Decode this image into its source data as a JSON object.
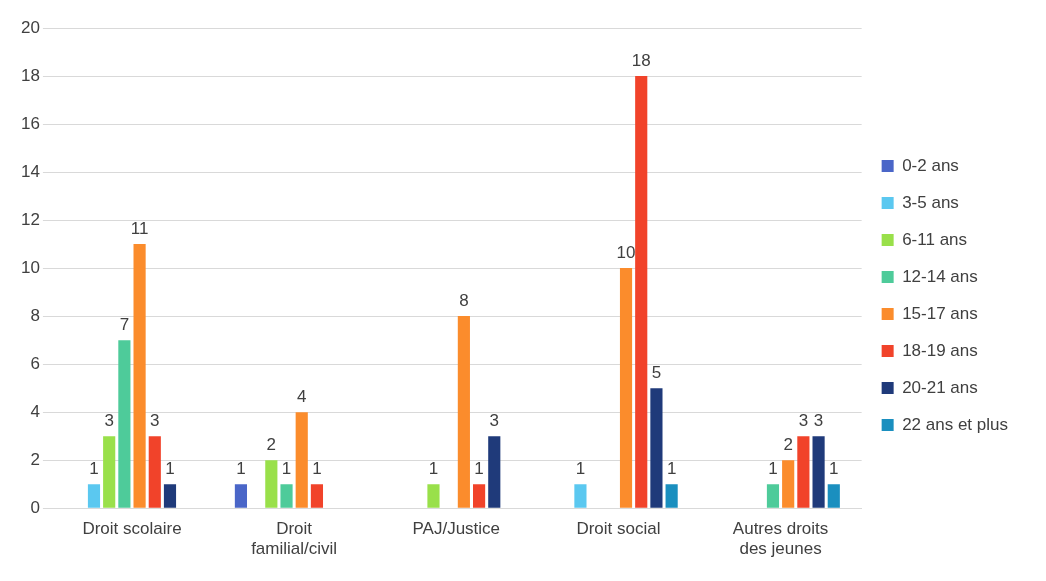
{
  "chart_data": {
    "type": "bar",
    "categories": [
      "Droit scolaire",
      "Droit familial/civil",
      "PAJ/Justice",
      "Droit social",
      "Autres droits des jeunes"
    ],
    "series": [
      {
        "name": "0-2 ans",
        "color": "#4a66c8",
        "values": [
          null,
          1,
          null,
          null,
          null
        ]
      },
      {
        "name": "3-5 ans",
        "color": "#5bc8f0",
        "values": [
          1,
          null,
          null,
          1,
          null
        ]
      },
      {
        "name": "6-11 ans",
        "color": "#99e04a",
        "values": [
          3,
          2,
          1,
          null,
          null
        ]
      },
      {
        "name": "12-14 ans",
        "color": "#4ecb9a",
        "values": [
          7,
          1,
          null,
          null,
          1
        ]
      },
      {
        "name": "15-17 ans",
        "color": "#fb8c2c",
        "values": [
          11,
          4,
          8,
          10,
          2
        ]
      },
      {
        "name": "18-19 ans",
        "color": "#f1432a",
        "values": [
          3,
          1,
          1,
          18,
          3
        ]
      },
      {
        "name": "20-21 ans",
        "color": "#1f3a7a",
        "values": [
          1,
          null,
          3,
          5,
          3
        ]
      },
      {
        "name": "22 ans et plus",
        "color": "#1a8fbf",
        "values": [
          null,
          null,
          null,
          1,
          1
        ]
      }
    ],
    "ylim": [
      0,
      20
    ],
    "yticks": [
      0,
      2,
      4,
      6,
      8,
      10,
      12,
      14,
      16,
      18,
      20
    ],
    "grid": "y",
    "legend": "right",
    "data_labels": true
  }
}
